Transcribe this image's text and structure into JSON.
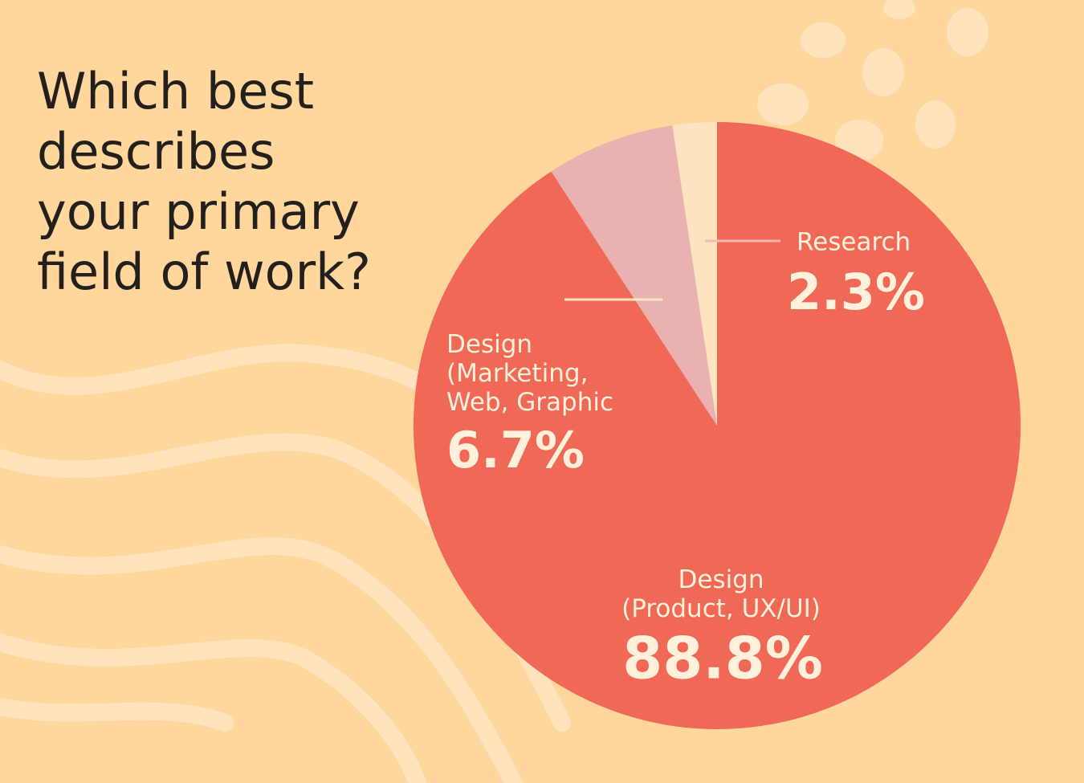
{
  "chart_data": {
    "type": "pie",
    "title": "Which best\ndescribes\nyour primary\nfield of work?",
    "categories": [
      "Design\n(Product, UX/UI)",
      "Design\n(Marketing,\nWeb, Graphic",
      "Research"
    ],
    "values": [
      88.8,
      6.7,
      2.3
    ],
    "value_labels": [
      "88.8%",
      "6.7%",
      "2.3%"
    ],
    "colors": [
      "#f06856",
      "#e9b1b0",
      "#fde3c0"
    ]
  }
}
